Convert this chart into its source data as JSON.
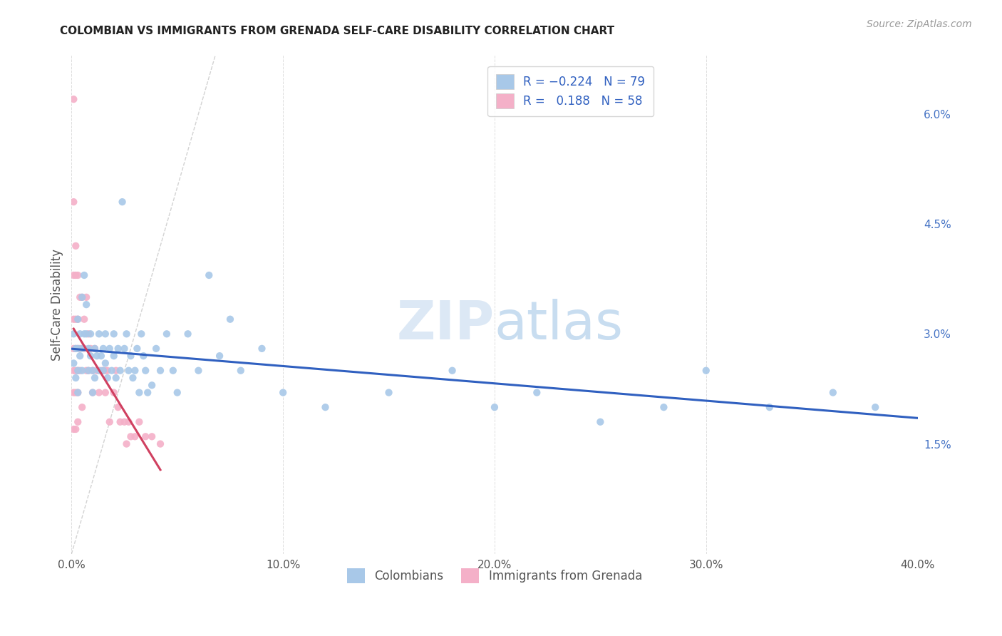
{
  "title": "COLOMBIAN VS IMMIGRANTS FROM GRENADA SELF-CARE DISABILITY CORRELATION CHART",
  "source": "Source: ZipAtlas.com",
  "ylabel": "Self-Care Disability",
  "right_yticks": [
    "1.5%",
    "3.0%",
    "4.5%",
    "6.0%"
  ],
  "right_ytick_vals": [
    0.015,
    0.03,
    0.045,
    0.06
  ],
  "xmin": 0.0,
  "xmax": 0.4,
  "ymin": 0.0,
  "ymax": 0.068,
  "colombian_R": "-0.224",
  "colombian_N": "79",
  "grenada_R": "0.188",
  "grenada_N": "58",
  "colombian_color": "#a8c8e8",
  "grenada_color": "#f4b0c8",
  "trend_colombian_color": "#3060c0",
  "trend_grenada_color": "#d04060",
  "diagonal_color": "#c8c8c8",
  "watermark_zip": "ZIP",
  "watermark_atlas": "atlas",
  "legend_r_color": "#3060c0",
  "legend_text_color": "#333333",
  "colombian_x": [
    0.001,
    0.001,
    0.002,
    0.002,
    0.003,
    0.003,
    0.003,
    0.003,
    0.004,
    0.004,
    0.005,
    0.005,
    0.005,
    0.006,
    0.006,
    0.007,
    0.007,
    0.008,
    0.008,
    0.009,
    0.009,
    0.01,
    0.01,
    0.011,
    0.011,
    0.012,
    0.013,
    0.013,
    0.014,
    0.015,
    0.015,
    0.016,
    0.016,
    0.017,
    0.018,
    0.019,
    0.02,
    0.02,
    0.021,
    0.022,
    0.023,
    0.024,
    0.025,
    0.026,
    0.027,
    0.028,
    0.029,
    0.03,
    0.031,
    0.032,
    0.033,
    0.034,
    0.035,
    0.036,
    0.038,
    0.04,
    0.042,
    0.045,
    0.048,
    0.05,
    0.055,
    0.06,
    0.065,
    0.07,
    0.075,
    0.08,
    0.09,
    0.1,
    0.12,
    0.15,
    0.18,
    0.2,
    0.22,
    0.25,
    0.28,
    0.3,
    0.33,
    0.36,
    0.38
  ],
  "colombian_y": [
    0.03,
    0.026,
    0.028,
    0.024,
    0.032,
    0.028,
    0.025,
    0.022,
    0.03,
    0.027,
    0.028,
    0.025,
    0.035,
    0.03,
    0.038,
    0.034,
    0.03,
    0.028,
    0.025,
    0.03,
    0.027,
    0.025,
    0.022,
    0.028,
    0.024,
    0.027,
    0.025,
    0.03,
    0.027,
    0.028,
    0.025,
    0.03,
    0.026,
    0.024,
    0.028,
    0.025,
    0.03,
    0.027,
    0.024,
    0.028,
    0.025,
    0.048,
    0.028,
    0.03,
    0.025,
    0.027,
    0.024,
    0.025,
    0.028,
    0.022,
    0.03,
    0.027,
    0.025,
    0.022,
    0.023,
    0.028,
    0.025,
    0.03,
    0.025,
    0.022,
    0.03,
    0.025,
    0.038,
    0.027,
    0.032,
    0.025,
    0.028,
    0.022,
    0.02,
    0.022,
    0.025,
    0.02,
    0.022,
    0.018,
    0.02,
    0.025,
    0.02,
    0.022,
    0.02
  ],
  "grenada_x": [
    0.001,
    0.001,
    0.001,
    0.001,
    0.001,
    0.001,
    0.001,
    0.001,
    0.002,
    0.002,
    0.002,
    0.002,
    0.002,
    0.002,
    0.002,
    0.003,
    0.003,
    0.003,
    0.003,
    0.003,
    0.003,
    0.004,
    0.004,
    0.004,
    0.005,
    0.005,
    0.005,
    0.006,
    0.006,
    0.007,
    0.007,
    0.008,
    0.008,
    0.009,
    0.01,
    0.01,
    0.011,
    0.012,
    0.013,
    0.014,
    0.015,
    0.016,
    0.016,
    0.017,
    0.018,
    0.02,
    0.021,
    0.022,
    0.023,
    0.025,
    0.026,
    0.027,
    0.028,
    0.03,
    0.032,
    0.035,
    0.038,
    0.042
  ],
  "grenada_y": [
    0.062,
    0.048,
    0.038,
    0.032,
    0.028,
    0.025,
    0.022,
    0.017,
    0.042,
    0.038,
    0.032,
    0.028,
    0.025,
    0.022,
    0.017,
    0.038,
    0.032,
    0.028,
    0.025,
    0.022,
    0.018,
    0.035,
    0.028,
    0.025,
    0.035,
    0.028,
    0.02,
    0.032,
    0.028,
    0.035,
    0.025,
    0.03,
    0.025,
    0.028,
    0.025,
    0.022,
    0.028,
    0.025,
    0.022,
    0.025,
    0.025,
    0.025,
    0.022,
    0.025,
    0.018,
    0.022,
    0.025,
    0.02,
    0.018,
    0.018,
    0.015,
    0.018,
    0.016,
    0.016,
    0.018,
    0.016,
    0.016,
    0.015
  ],
  "xtick_vals": [
    0.0,
    0.1,
    0.2,
    0.3,
    0.4
  ],
  "xtick_labels": [
    "0.0%",
    "10.0%",
    "20.0%",
    "30.0%",
    "40.0%"
  ]
}
